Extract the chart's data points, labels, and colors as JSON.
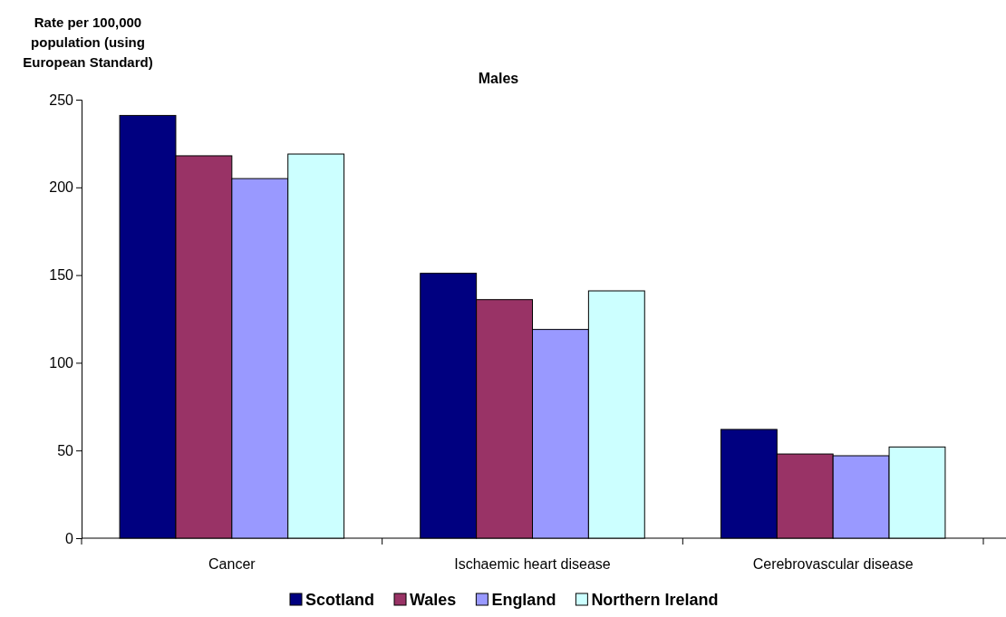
{
  "chart_data": {
    "type": "bar",
    "title": "Males",
    "ylabel": "Rate per 100,000 population (using European Standard)",
    "categories": [
      "Cancer",
      "Ischaemic heart disease",
      "Cerebrovascular disease"
    ],
    "series": [
      {
        "name": "Scotland",
        "color": "#000080",
        "values": [
          241,
          151,
          62
        ]
      },
      {
        "name": "Wales",
        "color": "#993366",
        "values": [
          218,
          136,
          48
        ]
      },
      {
        "name": "England",
        "color": "#9999ff",
        "values": [
          205,
          119,
          47
        ]
      },
      {
        "name": "Northern Ireland",
        "color": "#ccffff",
        "values": [
          219,
          141,
          52
        ]
      }
    ],
    "ylim": [
      0,
      250
    ],
    "yticks": [
      0,
      50,
      100,
      150,
      200,
      250
    ],
    "grid": false,
    "legend": "bottom"
  }
}
